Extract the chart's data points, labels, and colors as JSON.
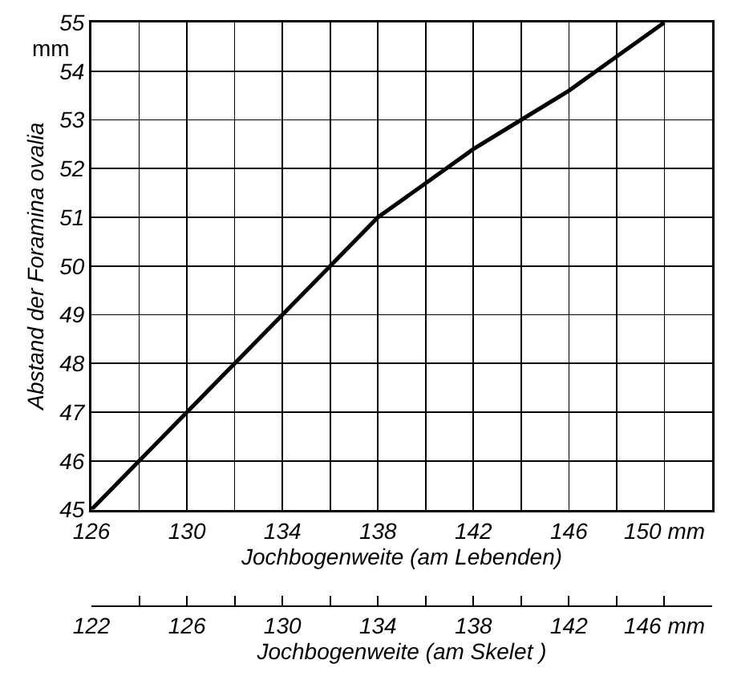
{
  "chart_data": {
    "type": "line",
    "xlabel": "Jochbogenweite (am Lebenden)",
    "ylabel": "Abstand der Foramina ovalia",
    "x2label": "Jochbogenweite (am Skelet )",
    "annotations": [
      "mm"
    ],
    "x": [
      126,
      128,
      130,
      132,
      134,
      136,
      138,
      140,
      142,
      144,
      146,
      148,
      150
    ],
    "series": [
      {
        "color": "#000000",
        "values": [
          45,
          46,
          47,
          48,
          49,
          50,
          51,
          51.7,
          52.4,
          53,
          53.6,
          54.3,
          55
        ]
      }
    ],
    "xlim": [
      126,
      152
    ],
    "xticks": [
      126,
      {
        "value": 128,
        "label": null
      },
      130,
      {
        "value": 132,
        "label": null
      },
      134,
      {
        "value": 136,
        "label": null
      },
      138,
      {
        "value": 140,
        "label": null
      },
      142,
      {
        "value": 144,
        "label": null
      },
      146,
      {
        "value": 148,
        "label": null
      },
      {
        "value": 150,
        "label": "150 mm"
      }
    ],
    "ylim": [
      45,
      55
    ],
    "yticks": [
      45,
      46,
      47,
      48,
      49,
      50,
      51,
      52,
      53,
      54,
      55
    ],
    "x2lim": [
      122,
      148
    ],
    "x2ticks": [
      122,
      {
        "value": 124,
        "label": null
      },
      126,
      {
        "value": 128,
        "label": null
      },
      130,
      {
        "value": 132,
        "label": null
      },
      134,
      {
        "value": 136,
        "label": null
      },
      138,
      {
        "value": 140,
        "label": null
      },
      142,
      {
        "value": 144,
        "label": null
      },
      {
        "value": 146,
        "label": "146 mm"
      },
      {
        "value": 148,
        "label": null
      }
    ],
    "grid": true,
    "legend": false,
    "marker": "none",
    "line_style": "solid"
  }
}
